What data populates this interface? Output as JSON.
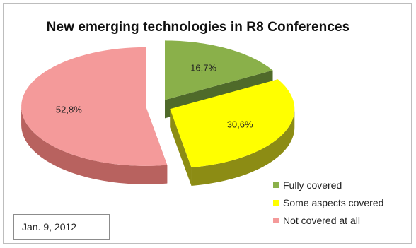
{
  "chart_data": {
    "type": "pie",
    "title": "New emerging technologies in R8 Conferences",
    "slices": [
      {
        "label": "Fully covered",
        "value": 16.7,
        "display": "16,7%",
        "color": "#8ab04a",
        "side_color": "#4f6a2a",
        "exploded": true
      },
      {
        "label": "Some aspects covered",
        "value": 30.6,
        "display": "30,6%",
        "color": "#ffff00",
        "side_color": "#8c8c14",
        "exploded": true
      },
      {
        "label": "Not covered at all",
        "value": 52.8,
        "display": "52,8%",
        "color": "#f49a9a",
        "side_color": "#b8625f",
        "exploded": true
      }
    ],
    "legend_position": "bottom-right",
    "style": "3D exploded pie"
  },
  "note": {
    "date": "Jan. 9, 2012"
  }
}
